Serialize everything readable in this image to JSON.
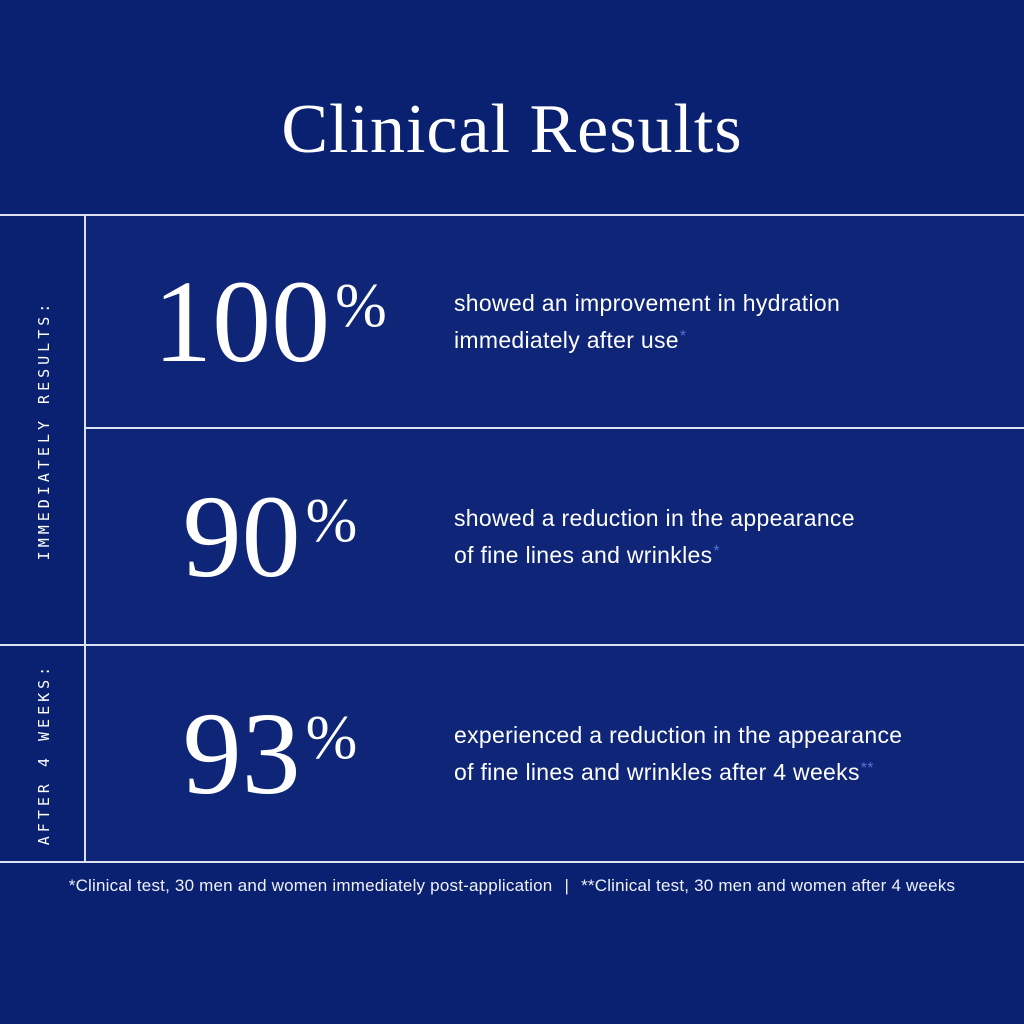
{
  "title": "Clinical Results",
  "group_labels": {
    "immediately": "IMMEDIATELY RESULTS:",
    "after_4_weeks": "AFTER 4 WEEKS:"
  },
  "rows": [
    {
      "value": "100",
      "unit": "%",
      "description_line1": "showed an improvement in hydration",
      "description_line2": "immediately after use",
      "footnote_marker": "*"
    },
    {
      "value": "90",
      "unit": "%",
      "description_line1": "showed a reduction in the appearance",
      "description_line2": "of fine lines and wrinkles",
      "footnote_marker": "*"
    },
    {
      "value": "93",
      "unit": "%",
      "description_line1": "experienced a reduction in the appearance",
      "description_line2": "of fine lines and wrinkles after 4 weeks",
      "footnote_marker": "**"
    }
  ],
  "footer": {
    "note_immediate": "*Clinical test, 30 men and women immediately post-application",
    "separator": "|",
    "note_4_weeks": "**Clinical test, 30 men and women after 4 weeks"
  },
  "colors": {
    "background": "#0a2070",
    "panel": "#0e2578",
    "rule_line": "#dde2f2",
    "text": "#ffffff",
    "footnote_marker": "#5672d4"
  }
}
